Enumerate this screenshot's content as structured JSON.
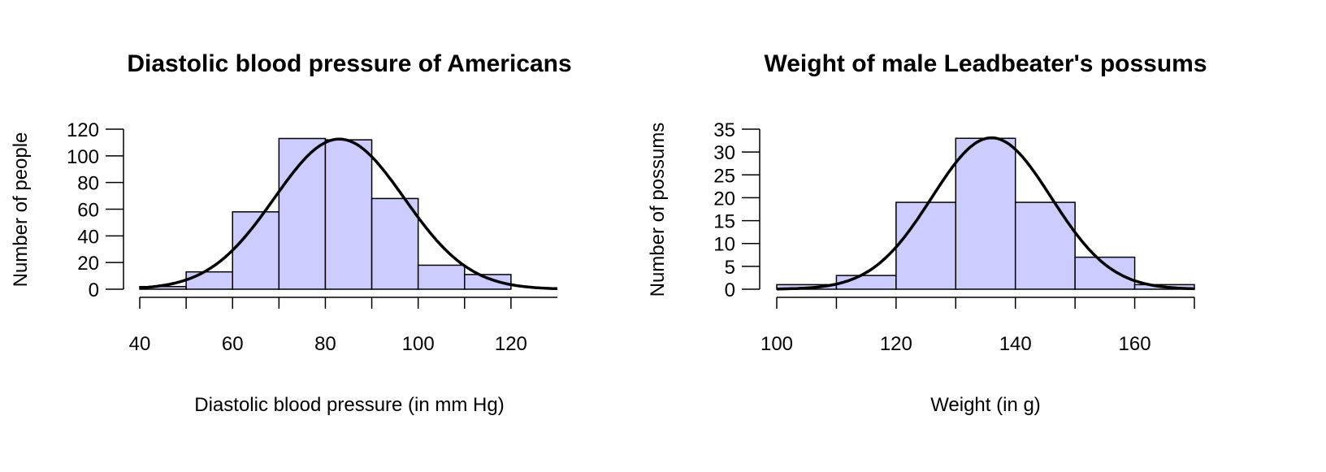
{
  "chart_data": [
    {
      "type": "bar",
      "title": "Diastolic blood pressure of Americans",
      "xlabel": "Diastolic blood pressure (in mm Hg)",
      "ylabel": "Number of people",
      "bin_edges": [
        40,
        50,
        60,
        70,
        80,
        90,
        100,
        110,
        120,
        130
      ],
      "values": [
        2,
        13,
        58,
        113,
        112,
        68,
        18,
        11,
        0
      ],
      "normal_curve": {
        "mean": 83,
        "sd": 14
      },
      "xlim": [
        40,
        130
      ],
      "ylim": [
        0,
        120
      ],
      "xticks": [
        "40",
        "60",
        "80",
        "100",
        "120"
      ],
      "yticks": [
        "0",
        "20",
        "40",
        "60",
        "80",
        "100",
        "120"
      ],
      "bar_color": "#ccccff",
      "grid": false
    },
    {
      "type": "bar",
      "title": "Weight of male Leadbeater's possums",
      "xlabel": "Weight (in g)",
      "ylabel": "Number of possums",
      "bin_edges": [
        100,
        110,
        120,
        130,
        140,
        150,
        160,
        170
      ],
      "values": [
        1,
        3,
        19,
        33,
        19,
        7,
        1
      ],
      "normal_curve": {
        "mean": 136,
        "sd": 10
      },
      "xlim": [
        100,
        170
      ],
      "ylim": [
        0,
        35
      ],
      "xticks": [
        "100",
        "120",
        "140",
        "160"
      ],
      "yticks": [
        "0",
        "5",
        "10",
        "15",
        "20",
        "25",
        "30",
        "35"
      ],
      "bar_color": "#ccccff",
      "grid": false
    }
  ]
}
